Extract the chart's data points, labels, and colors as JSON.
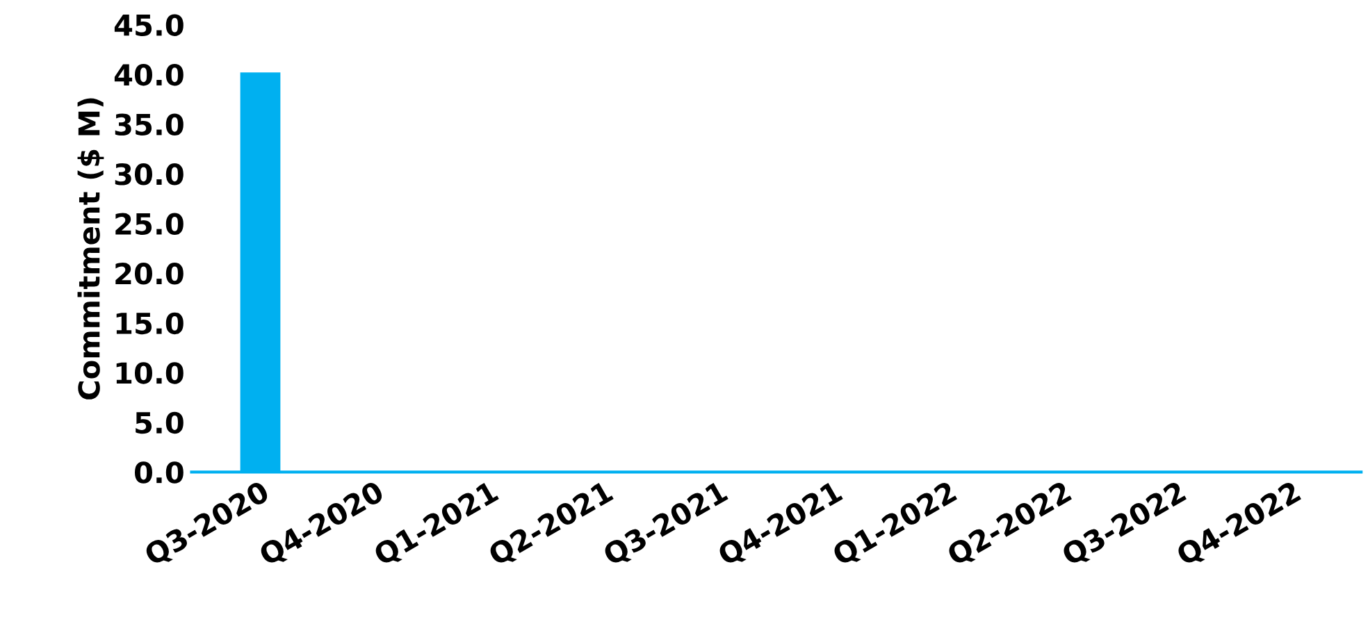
{
  "chart_data": {
    "type": "bar",
    "ylabel": "Commitment ($ M)",
    "categories": [
      "Q3-2020",
      "Q4-2020",
      "Q1-2021",
      "Q2-2021",
      "Q3-2021",
      "Q4-2021",
      "Q1-2022",
      "Q2-2022",
      "Q3-2022",
      "Q4-2022"
    ],
    "values": [
      40.2,
      0,
      0,
      0,
      0,
      0,
      0,
      0,
      0,
      0
    ],
    "color": "#00b0f0",
    "ylim": [
      0,
      45
    ],
    "yticks": [
      {
        "value": 0,
        "label": "0.0"
      },
      {
        "value": 5,
        "label": "5.0"
      },
      {
        "value": 10,
        "label": "10.0"
      },
      {
        "value": 15,
        "label": "15.0"
      },
      {
        "value": 20,
        "label": "20.0"
      },
      {
        "value": 25,
        "label": "25.0"
      },
      {
        "value": 30,
        "label": "30.0"
      },
      {
        "value": 35,
        "label": "35.0"
      },
      {
        "value": 40,
        "label": "40.0"
      },
      {
        "value": 45,
        "label": "45.0"
      }
    ],
    "grid": false
  }
}
